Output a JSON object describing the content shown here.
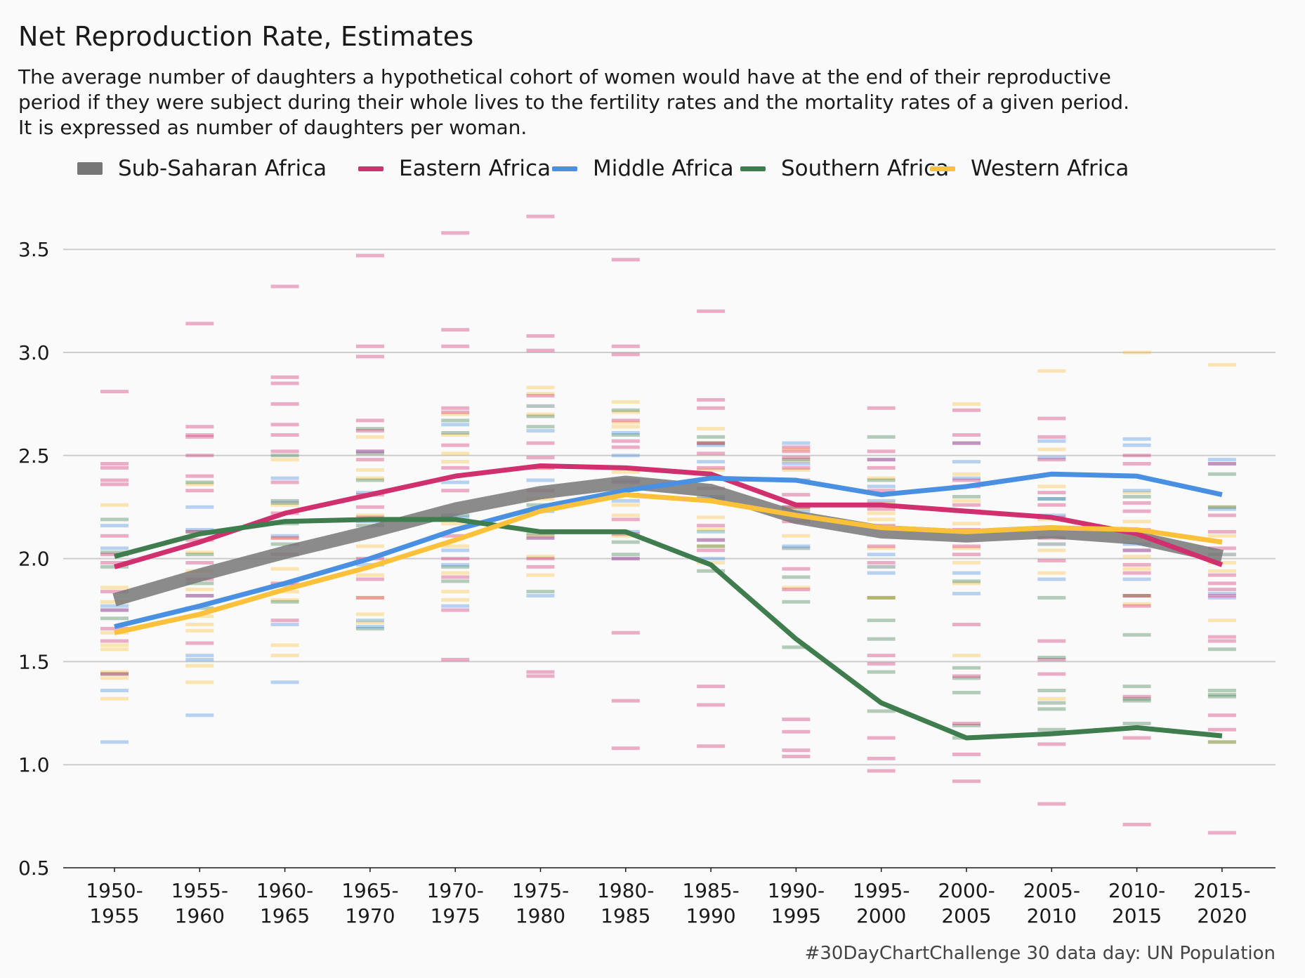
{
  "chart_data": {
    "type": "line",
    "title": "Net Reproduction Rate, Estimates",
    "subtitle": [
      "The average number of daughters a hypothetical cohort of women would have at the end of their reproductive",
      "period if they were subject during their whole lives to the fertility rates and the mortality rates of a given period.",
      "It is expressed as number of daughters per woman."
    ],
    "caption": "#30DayChartChallenge 30 data day: UN Population",
    "xlabel": "",
    "ylabel": "",
    "ylim": [
      0.5,
      3.7
    ],
    "yticks": [
      "0.5",
      "1.0",
      "1.5",
      "2.0",
      "2.5",
      "3.0",
      "3.5"
    ],
    "grid": true,
    "legend_position": "top",
    "categories": [
      [
        "1950-",
        "1955"
      ],
      [
        "1955-",
        "1960"
      ],
      [
        "1960-",
        "1965"
      ],
      [
        "1965-",
        "1970"
      ],
      [
        "1970-",
        "1975"
      ],
      [
        "1975-",
        "1980"
      ],
      [
        "1980-",
        "1985"
      ],
      [
        "1985-",
        "1990"
      ],
      [
        "1990-",
        "1995"
      ],
      [
        "1995-",
        "2000"
      ],
      [
        "2000-",
        "2005"
      ],
      [
        "2005-",
        "2010"
      ],
      [
        "2010-",
        "2015"
      ],
      [
        "2015-",
        "2020"
      ]
    ],
    "series": [
      {
        "name": "Sub-Saharan Africa",
        "color": "#777777",
        "values": [
          1.8,
          1.92,
          2.03,
          2.13,
          2.24,
          2.32,
          2.37,
          2.33,
          2.2,
          2.13,
          2.11,
          2.13,
          2.1,
          2.01
        ]
      },
      {
        "name": "Eastern Africa",
        "color": "#d1306e",
        "values": [
          1.96,
          2.08,
          2.22,
          2.31,
          2.4,
          2.45,
          2.44,
          2.41,
          2.26,
          2.26,
          2.23,
          2.2,
          2.12,
          1.97
        ]
      },
      {
        "name": "Middle Africa",
        "color": "#4a90e2",
        "values": [
          1.67,
          1.77,
          1.88,
          2.0,
          2.14,
          2.25,
          2.33,
          2.39,
          2.38,
          2.31,
          2.35,
          2.41,
          2.4,
          2.31
        ]
      },
      {
        "name": "Southern Africa",
        "color": "#3f7d4e",
        "values": [
          2.01,
          2.12,
          2.18,
          2.19,
          2.19,
          2.13,
          2.13,
          1.97,
          1.61,
          1.3,
          1.13,
          1.15,
          1.18,
          1.14
        ]
      },
      {
        "name": "Western Africa",
        "color": "#fbc13b",
        "values": [
          1.64,
          1.73,
          1.85,
          1.96,
          2.09,
          2.23,
          2.31,
          2.28,
          2.21,
          2.15,
          2.13,
          2.15,
          2.14,
          2.08
        ]
      }
    ],
    "country_ticks": {
      "Eastern Africa": [
        [
          2.81,
          2.46,
          2.44,
          2.38,
          2.36,
          2.11,
          2.02,
          1.98,
          1.84,
          1.75,
          1.66,
          1.6,
          1.44
        ],
        [
          3.14,
          2.64,
          2.6,
          2.59,
          2.5,
          2.4,
          2.33,
          2.13,
          2.09,
          1.98,
          1.9,
          1.82,
          1.59
        ],
        [
          3.32,
          2.88,
          2.85,
          2.75,
          2.65,
          2.6,
          2.52,
          2.37,
          2.22,
          2.1,
          2.02,
          1.88,
          1.7
        ],
        [
          3.47,
          3.03,
          2.98,
          2.67,
          2.62,
          2.52,
          2.48,
          2.31,
          2.25,
          2.2,
          2.0,
          1.9,
          1.81
        ],
        [
          3.58,
          3.11,
          3.03,
          2.73,
          2.71,
          2.55,
          2.44,
          2.33,
          2.11,
          2.0,
          1.91,
          1.75,
          1.51
        ],
        [
          3.66,
          3.08,
          3.01,
          2.79,
          2.56,
          2.49,
          2.44,
          2.33,
          2.1,
          2.0,
          1.96,
          1.45,
          1.43
        ],
        [
          3.45,
          3.03,
          2.99,
          2.67,
          2.57,
          2.54,
          2.37,
          2.31,
          2.19,
          2.12,
          2.0,
          1.64,
          1.31,
          1.08
        ],
        [
          3.2,
          2.77,
          2.73,
          2.56,
          2.51,
          2.44,
          2.34,
          2.16,
          2.09,
          2.04,
          1.38,
          1.29,
          1.09
        ],
        [
          2.54,
          2.52,
          2.49,
          2.44,
          2.31,
          2.25,
          2.18,
          1.95,
          1.85,
          1.22,
          1.16,
          1.07,
          1.04
        ],
        [
          2.73,
          2.52,
          2.48,
          2.44,
          2.33,
          2.24,
          2.16,
          2.06,
          1.98,
          1.53,
          1.49,
          1.13,
          1.03,
          0.97
        ],
        [
          2.72,
          2.6,
          2.56,
          2.38,
          2.35,
          2.26,
          2.14,
          2.06,
          2.02,
          1.68,
          1.43,
          1.2,
          1.05,
          0.92
        ],
        [
          2.68,
          2.59,
          2.48,
          2.32,
          2.26,
          2.2,
          2.1,
          1.99,
          1.6,
          1.51,
          1.44,
          1.1,
          0.81
        ],
        [
          2.5,
          2.46,
          2.27,
          2.23,
          2.14,
          2.04,
          1.97,
          1.93,
          1.82,
          1.77,
          1.33,
          1.13,
          0.71
        ],
        [
          2.46,
          2.21,
          2.13,
          2.05,
          1.92,
          1.88,
          1.85,
          1.82,
          1.62,
          1.6,
          1.24,
          1.17,
          0.67
        ]
      ],
      "Middle Africa": [
        [
          2.16,
          2.05,
          1.77,
          1.75,
          1.36,
          1.11
        ],
        [
          2.25,
          2.14,
          1.82,
          1.53,
          1.51,
          1.24
        ],
        [
          2.39,
          2.28,
          2.11,
          1.87,
          1.68,
          1.4
        ],
        [
          2.52,
          2.32,
          2.18,
          1.97,
          1.7,
          1.67
        ],
        [
          2.65,
          2.37,
          2.2,
          2.04,
          1.97,
          1.77
        ],
        [
          2.74,
          2.62,
          2.38,
          2.23,
          2.1,
          1.82
        ],
        [
          2.61,
          2.5,
          2.38,
          2.28,
          2.13,
          2.0
        ],
        [
          2.55,
          2.47,
          2.29,
          2.13,
          2.09,
          2.0
        ],
        [
          2.56,
          2.46,
          2.38,
          2.23,
          2.06,
          2.05
        ],
        [
          2.48,
          2.35,
          2.28,
          2.02,
          1.96,
          1.93
        ],
        [
          2.56,
          2.47,
          2.39,
          2.23,
          1.93,
          1.83
        ],
        [
          2.57,
          2.49,
          2.29,
          2.21,
          2.07,
          1.9
        ],
        [
          2.58,
          2.55,
          2.33,
          2.07,
          2.04,
          1.9
        ],
        [
          2.48,
          2.46,
          2.24,
          2.02,
          1.83,
          1.81
        ]
      ],
      "Southern Africa": [
        [
          2.19,
          2.03,
          1.96,
          1.71,
          1.44
        ],
        [
          2.37,
          2.13,
          2.02,
          1.88,
          1.76
        ],
        [
          2.5,
          2.27,
          2.17,
          2.07,
          1.79
        ],
        [
          2.63,
          2.51,
          2.38,
          2.16,
          1.66
        ],
        [
          2.67,
          2.61,
          2.21,
          1.96,
          1.89
        ],
        [
          2.69,
          2.64,
          2.26,
          2.12,
          1.84
        ],
        [
          2.72,
          2.6,
          2.31,
          2.08,
          2.02
        ],
        [
          2.59,
          2.56,
          2.3,
          2.06,
          1.94
        ],
        [
          2.48,
          2.25,
          1.91,
          1.79,
          1.57
        ],
        [
          2.59,
          2.38,
          1.81,
          1.7,
          1.61,
          1.45,
          1.26
        ],
        [
          2.3,
          1.89,
          1.47,
          1.42,
          1.35,
          1.19,
          1.13
        ],
        [
          2.29,
          1.81,
          1.52,
          1.36,
          1.3,
          1.27,
          1.17
        ],
        [
          2.3,
          1.82,
          1.63,
          1.38,
          1.32,
          1.31,
          1.2
        ],
        [
          2.41,
          2.25,
          1.56,
          1.36,
          1.34,
          1.33,
          1.11
        ]
      ],
      "Western Africa": [
        [
          2.26,
          1.86,
          1.79,
          1.64,
          1.58,
          1.56,
          1.45,
          1.42,
          1.32
        ],
        [
          2.36,
          2.03,
          1.94,
          1.85,
          1.72,
          1.68,
          1.65,
          1.48,
          1.4
        ],
        [
          2.48,
          2.28,
          2.26,
          2.1,
          1.95,
          1.84,
          1.8,
          1.58,
          1.53
        ],
        [
          2.59,
          2.43,
          2.39,
          2.21,
          2.06,
          1.92,
          1.81,
          1.73,
          1.69
        ],
        [
          2.7,
          2.6,
          2.51,
          2.47,
          2.17,
          2.06,
          1.93,
          1.84,
          1.8
        ],
        [
          2.83,
          2.8,
          2.74,
          2.7,
          2.44,
          2.29,
          2.11,
          2.01,
          1.92
        ],
        [
          2.76,
          2.71,
          2.66,
          2.64,
          2.42,
          2.31,
          2.26,
          2.21,
          2.11
        ],
        [
          2.63,
          2.56,
          2.43,
          2.29,
          2.2,
          2.14,
          2.06,
          1.98
        ],
        [
          2.53,
          2.47,
          2.43,
          2.38,
          2.24,
          2.11,
          2.05,
          1.86
        ],
        [
          2.39,
          2.27,
          2.22,
          2.19,
          2.05,
          1.96,
          1.81,
          1.81
        ],
        [
          2.75,
          2.41,
          2.28,
          2.17,
          2.05,
          1.98,
          1.88,
          1.53
        ],
        [
          2.91,
          2.53,
          2.35,
          2.19,
          2.07,
          2.04,
          1.93,
          1.32
        ],
        [
          3.0,
          2.32,
          2.18,
          2.1,
          2.01,
          1.95,
          1.82,
          1.78
        ],
        [
          2.94,
          2.25,
          2.11,
          2.02,
          1.98,
          1.94,
          1.7,
          1.11
        ]
      ]
    }
  }
}
